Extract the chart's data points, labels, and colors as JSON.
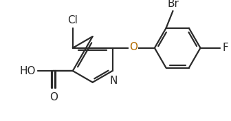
{
  "bg": "#ffffff",
  "bc": "#2a2a2a",
  "lw": 1.6,
  "fs": 10.5,
  "O_color": "#b36b00",
  "N_color": "#2a2a2a",
  "fig_w": 3.36,
  "fig_h": 1.76,
  "dpi": 100,
  "xlim": [
    -3.5,
    6.5
  ],
  "ylim": [
    -2.4,
    2.4
  ]
}
